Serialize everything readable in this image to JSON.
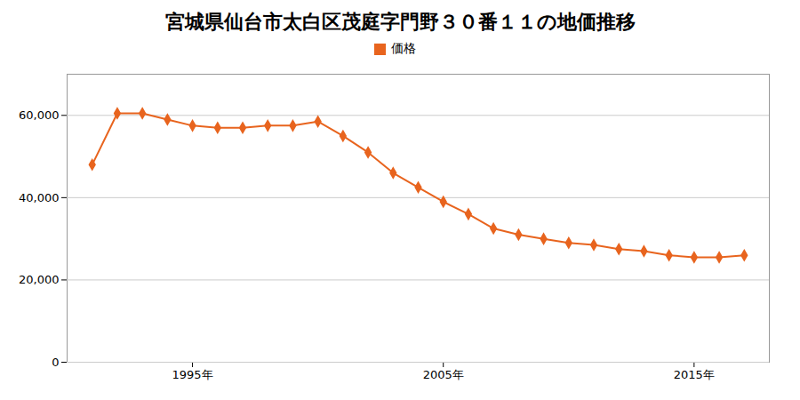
{
  "chart_data": {
    "type": "line",
    "title": "宮城県仙台市太白区茂庭字門野３０番１１の地価推移",
    "x": [
      1991,
      1992,
      1993,
      1994,
      1995,
      1996,
      1997,
      1998,
      1999,
      2000,
      2001,
      2002,
      2003,
      2004,
      2005,
      2006,
      2007,
      2008,
      2009,
      2010,
      2011,
      2012,
      2013,
      2014,
      2015,
      2016,
      2017
    ],
    "series": [
      {
        "name": "価格",
        "color": "#e8641e",
        "marker": "diamond",
        "values": [
          48000,
          60500,
          60500,
          59000,
          57500,
          57000,
          57000,
          57500,
          57500,
          58500,
          55000,
          51000,
          46000,
          42500,
          39000,
          36000,
          32500,
          31000,
          30000,
          29000,
          28500,
          27500,
          27000,
          26000,
          25500,
          25500,
          26000
        ]
      }
    ],
    "xlim": [
      1990,
      2018
    ],
    "xticks": [
      {
        "value": 1995,
        "label": "1995年"
      },
      {
        "value": 2005,
        "label": "2005年"
      },
      {
        "value": 2015,
        "label": "2015年"
      }
    ],
    "ylim": [
      0,
      70000
    ],
    "yticks": [
      0,
      {
        "value": 20000,
        "label": "20,000"
      },
      {
        "value": 40000,
        "label": "40,000"
      },
      {
        "value": 60000,
        "label": "60,000"
      }
    ],
    "grid": "y",
    "legend": "top"
  }
}
